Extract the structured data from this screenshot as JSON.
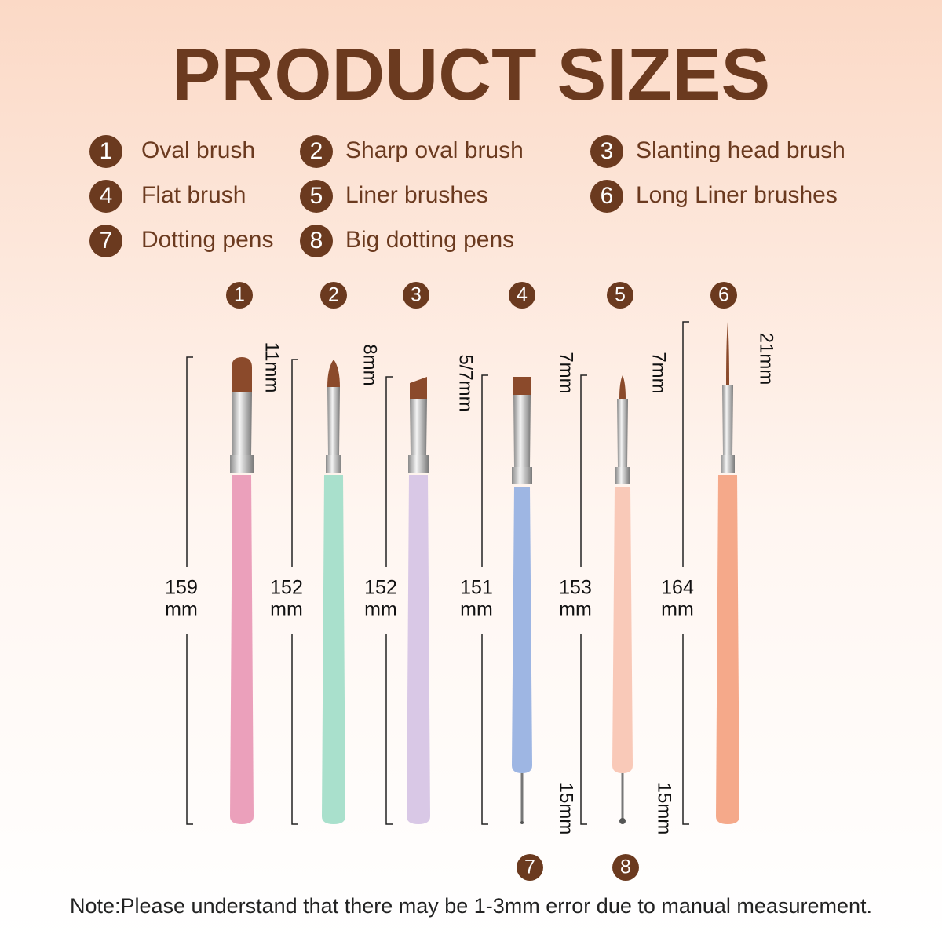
{
  "title": "PRODUCT SIZES",
  "legend": [
    {
      "number": "1",
      "label": "Oval brush"
    },
    {
      "number": "2",
      "label": "Sharp oval brush"
    },
    {
      "number": "3",
      "label": "Slanting head brush"
    },
    {
      "number": "4",
      "label": "Flat brush"
    },
    {
      "number": "5",
      "label": "Liner brushes"
    },
    {
      "number": "6",
      "label": "Long Liner brushes"
    },
    {
      "number": "7",
      "label": "Dotting pens"
    },
    {
      "number": "8",
      "label": "Big dotting pens"
    }
  ],
  "brushes": [
    {
      "number": "1",
      "length": "159",
      "unit": "mm",
      "tip": "11mm"
    },
    {
      "number": "2",
      "length": "152",
      "unit": "mm",
      "tip": "8mm"
    },
    {
      "number": "3",
      "length": "152",
      "unit": "mm",
      "tip": "5/7mm"
    },
    {
      "number": "4",
      "length": "151",
      "unit": "mm",
      "tip": "7mm"
    },
    {
      "number": "5",
      "length": "153",
      "unit": "mm",
      "tip": "7mm"
    },
    {
      "number": "6",
      "length": "164",
      "unit": "mm",
      "tip": "21mm"
    }
  ],
  "dotting": [
    {
      "number": "7",
      "tip": "15mm"
    },
    {
      "number": "8",
      "tip": "15mm"
    }
  ],
  "note": "Note:Please understand that there may be 1-3mm error due to manual measurement."
}
